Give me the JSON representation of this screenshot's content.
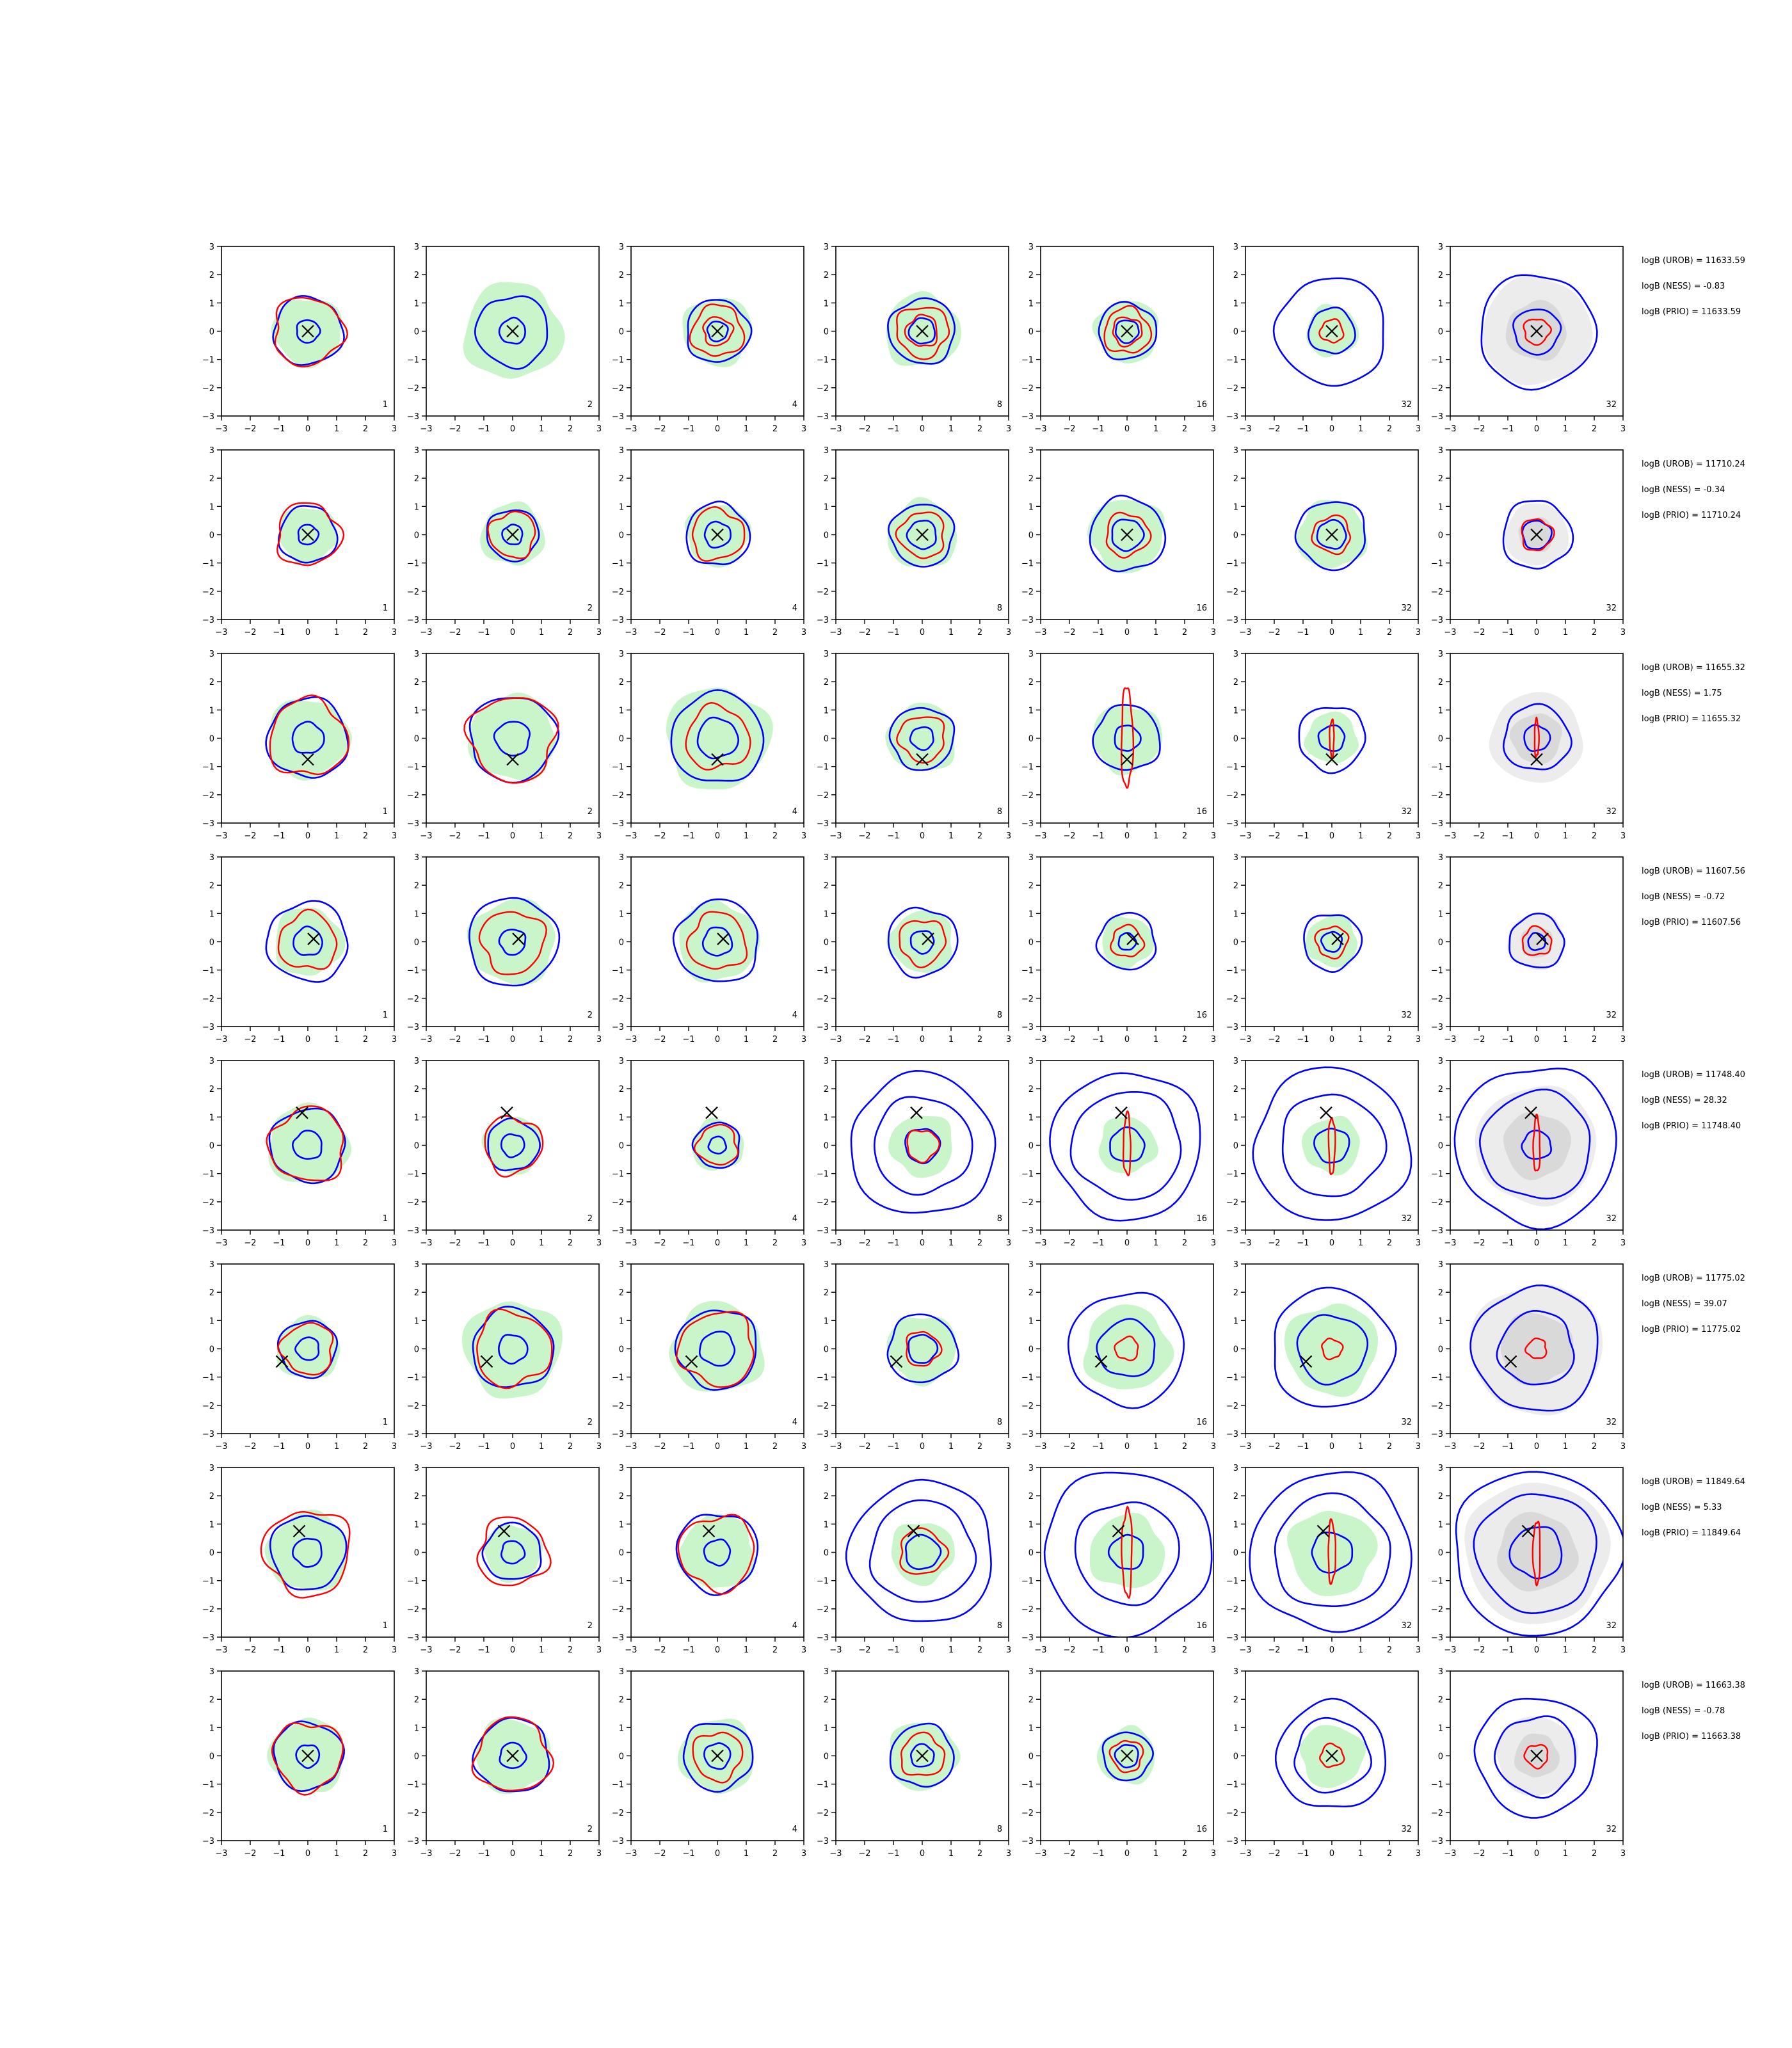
{
  "chart_data": {
    "type": "contour",
    "grid": false,
    "panel_xlim": [
      -3,
      3
    ],
    "panel_ylim": [
      -3,
      3
    ],
    "panel_ticks": [
      "−3",
      "−2",
      "−1",
      "0",
      "1",
      "2",
      "3"
    ],
    "panel_tick_values": [
      -3,
      -2,
      -1,
      0,
      1,
      2,
      3
    ],
    "panel_labels": [
      "1",
      "2",
      "4",
      "8",
      "16",
      "32",
      "32"
    ],
    "colors": {
      "inner_contour": "#0000ff",
      "outer_contour": "#ff0000",
      "kde_fill": "#b8f0b8",
      "prior_fill": "#d9d9d9",
      "marker": "#000000"
    },
    "rows": [
      {
        "marker": [
          0.0,
          0.0
        ],
        "stats": [
          "logB (UROB) = 11633.59",
          "logB (NESS) = -0.83",
          "logB (PRIO) = 11633.59"
        ],
        "blue_r": [
          [
            0.4,
            1.2
          ],
          [
            0.45,
            1.25
          ],
          [
            0.35,
            1.1
          ],
          [
            0.45,
            1.15
          ],
          [
            0.4,
            1.0
          ],
          [
            0.8,
            1.9
          ],
          [
            0.8,
            2.0
          ]
        ],
        "red_r": [
          [
            1.2
          ],
          [],
          [
            0.5,
            0.9
          ],
          [
            0.55,
            0.9
          ],
          [
            0.5,
            0.8
          ],
          [
            0.4
          ],
          [
            0.45
          ]
        ],
        "green_r": [
          1.2,
          1.7,
          1.2,
          1.3,
          1.1,
          0.9,
          0.0
        ],
        "grey_r": [
          0,
          0,
          0,
          0,
          0,
          0,
          1.9
        ]
      },
      {
        "marker": [
          0.0,
          0.0
        ],
        "stats": [
          "logB (UROB) = 11710.24",
          "logB (NESS) = -0.34",
          "logB (PRIO) = 11710.24"
        ],
        "blue_r": [
          [
            0.35,
            1.0
          ],
          [
            0.35,
            0.9
          ],
          [
            0.45,
            1.1
          ],
          [
            0.5,
            1.1
          ],
          [
            0.55,
            1.3
          ],
          [
            0.5,
            1.2
          ],
          [
            0.5,
            1.2
          ]
        ],
        "red_r": [
          [
            1.1
          ],
          [
            0.8
          ],
          [
            0.9
          ],
          [
            0.8
          ],
          [
            0.75
          ],
          [
            0.65
          ],
          [
            0.55
          ]
        ],
        "green_r": [
          1.0,
          1.1,
          1.1,
          1.2,
          1.3,
          1.2,
          0.0
        ],
        "grey_r": [
          0,
          0,
          0,
          0,
          0,
          0,
          1.1
        ]
      },
      {
        "marker": [
          0.0,
          -0.75
        ],
        "stats": [
          "logB (UROB) = 11655.32",
          "logB (NESS) = 1.75",
          "logB (PRIO) = 11655.32"
        ],
        "blue_r": [
          [
            0.55,
            1.4
          ],
          [
            0.6,
            1.5
          ],
          [
            0.7,
            1.6
          ],
          [
            0.4,
            1.1
          ],
          [
            0.45,
            1.15
          ],
          [
            0.45,
            1.15
          ],
          [
            0.45,
            1.15
          ]
        ],
        "red_r": [
          [
            1.35
          ],
          [
            1.5
          ],
          [
            1.1
          ],
          [
            0.8
          ],
          [
            0.8
          ],
          [
            0.3
          ],
          [
            0.3
          ]
        ],
        "green_r": [
          1.4,
          1.5,
          1.8,
          1.2,
          1.2,
          0.9,
          0.0
        ],
        "grey_r": [
          0,
          0,
          0,
          0,
          0,
          0,
          1.6
        ]
      },
      {
        "marker": [
          0.2,
          0.1
        ],
        "stats": [
          "logB (UROB) = 11607.56",
          "logB (NESS) = -0.72",
          "logB (PRIO) = 11607.56"
        ],
        "blue_r": [
          [
            0.5,
            1.4
          ],
          [
            0.45,
            1.55
          ],
          [
            0.5,
            1.45
          ],
          [
            0.4,
            1.2
          ],
          [
            0.3,
            1.0
          ],
          [
            0.35,
            1.0
          ],
          [
            0.3,
            0.95
          ]
        ],
        "red_r": [
          [
            1.0
          ],
          [
            1.1
          ],
          [
            1.0
          ],
          [
            0.8
          ],
          [
            0.55
          ],
          [
            0.55
          ],
          [
            0.5
          ]
        ],
        "green_r": [
          1.2,
          1.5,
          1.4,
          1.1,
          0.9,
          0.9,
          0.0
        ],
        "grey_r": [
          0,
          0,
          0,
          0,
          0,
          0,
          1.0
        ]
      },
      {
        "marker": [
          -0.2,
          1.15
        ],
        "stats": [
          "logB (UROB) = 11748.40",
          "logB (NESS) = 28.32",
          "logB (PRIO) = 11748.40"
        ],
        "blue_r": [
          [
            0.5,
            1.3
          ],
          [
            0.4,
            0.9
          ],
          [
            0.3,
            0.8
          ],
          [
            0.6,
            1.7,
            2.5
          ],
          [
            0.6,
            1.9,
            2.6
          ],
          [
            0.6,
            1.8,
            2.7
          ],
          [
            0.5,
            1.9,
            2.8
          ]
        ],
        "red_r": [
          [
            1.3
          ],
          [
            1.0
          ],
          [
            0.7
          ],
          [
            0.55
          ],
          [
            0.5
          ],
          [
            0.45
          ],
          [
            0.45
          ]
        ],
        "green_r": [
          1.4,
          1.0,
          0.9,
          1.1,
          1.0,
          1.0,
          0.0
        ],
        "grey_r": [
          0,
          0,
          0,
          0,
          0,
          0,
          2.1
        ]
      },
      {
        "marker": [
          -0.9,
          -0.45
        ],
        "stats": [
          "logB (UROB) = 11775.02",
          "logB (NESS) = 39.07",
          "logB (PRIO) = 11775.02"
        ],
        "blue_r": [
          [
            0.4,
            1.0
          ],
          [
            0.5,
            1.4
          ],
          [
            0.6,
            1.4
          ],
          [
            0.5,
            1.2
          ],
          [
            1.0,
            2.0
          ],
          [
            1.2,
            2.1
          ],
          [
            1.3,
            2.2
          ]
        ],
        "red_r": [
          [
            0.9
          ],
          [
            1.3
          ],
          [
            1.3
          ],
          [
            0.6
          ],
          [
            0.4
          ],
          [
            0.35
          ],
          [
            0.35
          ]
        ],
        "green_r": [
          1.1,
          1.7,
          1.6,
          1.2,
          1.5,
          1.6,
          0.0
        ],
        "grey_r": [
          0,
          0,
          0,
          0,
          0,
          0,
          2.3
        ]
      },
      {
        "marker": [
          -0.3,
          0.75
        ],
        "stats": [
          "logB (UROB) = 11849.64",
          "logB (NESS) = 5.33",
          "logB (PRIO) = 11849.64"
        ],
        "blue_r": [
          [
            0.5,
            1.3
          ],
          [
            0.4,
            1.0
          ],
          [
            0.45,
            1.4
          ],
          [
            0.6,
            1.8,
            2.5
          ],
          [
            0.6,
            1.8,
            2.9
          ],
          [
            0.7,
            2.0,
            2.8
          ],
          [
            0.9,
            2.1,
            2.9
          ]
        ],
        "red_r": [
          [
            1.5
          ],
          [
            1.2
          ],
          [
            1.3
          ],
          [
            0.8
          ],
          [
            0.7
          ],
          [
            0.5
          ],
          [
            0.5
          ]
        ],
        "green_r": [
          1.4,
          1.0,
          1.3,
          1.1,
          1.3,
          1.5,
          0.0
        ],
        "grey_r": [
          0,
          0,
          0,
          0,
          0,
          0,
          2.5
        ]
      },
      {
        "marker": [
          0.0,
          0.0
        ],
        "stats": [
          "logB (UROB) = 11663.38",
          "logB (NESS) = -0.78",
          "logB (PRIO) = 11663.38"
        ],
        "blue_r": [
          [
            0.4,
            1.2
          ],
          [
            0.45,
            1.3
          ],
          [
            0.45,
            1.2
          ],
          [
            0.4,
            1.1
          ],
          [
            0.4,
            0.85
          ],
          [
            1.3,
            1.9
          ],
          [
            1.4,
            2.1
          ]
        ],
        "red_r": [
          [
            1.2
          ],
          [
            1.3
          ],
          [
            0.85
          ],
          [
            0.75
          ],
          [
            0.55
          ],
          [
            0.4
          ],
          [
            0.4
          ]
        ],
        "green_r": [
          1.3,
          1.3,
          1.3,
          1.2,
          1.0,
          1.1,
          0.0
        ],
        "grey_r": [
          0,
          0,
          0,
          0,
          0,
          0,
          1.4
        ]
      }
    ]
  }
}
